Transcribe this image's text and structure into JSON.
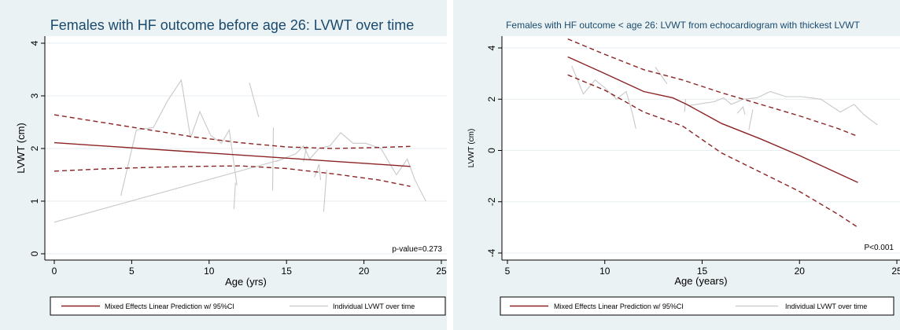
{
  "chart_data": [
    {
      "type": "line",
      "title": "Females with HF outcome before age 26: LVWT over time",
      "xlabel": "Age (yrs)",
      "ylabel": "LVWT (cm)",
      "xlim": [
        -0.5,
        25.5
      ],
      "ylim": [
        -0.1,
        4.2
      ],
      "xticks": [
        0,
        5,
        10,
        15,
        20,
        25
      ],
      "yticks": [
        0,
        1,
        2,
        3,
        4
      ],
      "grid": "horizontal",
      "legend_position": "bottom",
      "annotation": "p-value=0.273",
      "legend": [
        "Mixed Effects Linear Prediction w/ 95%CI",
        "Individual LVWT over time"
      ],
      "colors": {
        "prediction": "#8b2323",
        "individual": "#c8c8c8"
      },
      "series": [
        {
          "role": "prediction",
          "style": "solid",
          "x": [
            0,
            23
          ],
          "y": [
            2.11,
            1.66
          ]
        },
        {
          "role": "ci-upper",
          "style": "dashed",
          "x": [
            0,
            3,
            6,
            9,
            12,
            15,
            18,
            21,
            23
          ],
          "y": [
            2.64,
            2.5,
            2.36,
            2.22,
            2.11,
            2.03,
            2.0,
            2.02,
            2.04
          ]
        },
        {
          "role": "ci-lower",
          "style": "dashed",
          "x": [
            0,
            3,
            6,
            9,
            12,
            15,
            18,
            21,
            23
          ],
          "y": [
            1.57,
            1.61,
            1.64,
            1.66,
            1.67,
            1.62,
            1.52,
            1.4,
            1.28
          ]
        },
        {
          "role": "individual",
          "x": [
            0,
            14.8
          ],
          "y": [
            0.6,
            1.8
          ]
        },
        {
          "role": "individual",
          "x": [
            4.3,
            5.3,
            6.4,
            7.3,
            8.2,
            8.8,
            9.4,
            10.1,
            10.8,
            11.3,
            11.8
          ],
          "y": [
            1.1,
            2.35,
            2.4,
            2.9,
            3.3,
            2.2,
            2.7,
            2.25,
            2.1,
            2.35,
            1.3
          ]
        },
        {
          "role": "individual",
          "x": [
            11.6,
            11.7
          ],
          "y": [
            0.85,
            1.35
          ]
        },
        {
          "role": "individual",
          "x": [
            12.6,
            13.2
          ],
          "y": [
            3.25,
            2.6
          ]
        },
        {
          "role": "individual",
          "x": [
            14.1,
            14.15
          ],
          "y": [
            1.2,
            2.4
          ]
        },
        {
          "role": "individual",
          "x": [
            14.3,
            15.6,
            16.1,
            16.5,
            17.1,
            17.8,
            18.5,
            19.3,
            20.1,
            21.1,
            22.1,
            22.8,
            23.3,
            24.0
          ],
          "y": [
            1.75,
            1.9,
            2.05,
            1.8,
            2.0,
            2.05,
            2.3,
            2.1,
            2.1,
            2.0,
            1.5,
            1.8,
            1.4,
            1.0
          ]
        },
        {
          "role": "individual",
          "x": [
            16.1,
            16.3
          ],
          "y": [
            1.75,
            2.05
          ]
        },
        {
          "role": "individual",
          "x": [
            16.8,
            17.1,
            17.2
          ],
          "y": [
            1.45,
            1.7,
            1.4
          ]
        },
        {
          "role": "individual",
          "x": [
            17.4,
            17.6
          ],
          "y": [
            0.8,
            1.6
          ]
        }
      ]
    },
    {
      "type": "line",
      "title": "Females with HF outcome < age 26: LVWT from echocardiogram with thickest LVWT",
      "xlabel": "Age (years)",
      "ylabel": "LVWT (cm)",
      "xlim": [
        4.5,
        25.5
      ],
      "ylim": [
        -4.4,
        4.4
      ],
      "xticks": [
        5,
        10,
        15,
        20,
        25
      ],
      "yticks": [
        -4,
        -2,
        0,
        2,
        4
      ],
      "grid": "horizontal",
      "legend_position": "bottom",
      "annotation": "P<0.001",
      "legend": [
        "Mixed Effects Linear Prediction w/ 95%CI",
        "Individual LVWT over time"
      ],
      "colors": {
        "prediction": "#8b2323",
        "individual": "#c8c8c8"
      },
      "series": [
        {
          "role": "prediction",
          "style": "solid",
          "x": [
            8.1,
            10,
            12,
            13.5,
            14.2,
            16,
            18,
            20,
            22,
            23
          ],
          "y": [
            3.65,
            3.0,
            2.3,
            2.05,
            1.8,
            1.05,
            0.45,
            -0.2,
            -0.9,
            -1.25
          ]
        },
        {
          "role": "ci-upper",
          "style": "dashed",
          "x": [
            8.1,
            10,
            12,
            14,
            16,
            18,
            20,
            22,
            23
          ],
          "y": [
            4.35,
            3.75,
            3.15,
            2.75,
            2.25,
            1.8,
            1.35,
            0.85,
            0.55
          ]
        },
        {
          "role": "ci-lower",
          "style": "dashed",
          "x": [
            8.1,
            10,
            12,
            14,
            16,
            18,
            20,
            22,
            23
          ],
          "y": [
            2.95,
            2.35,
            1.5,
            0.95,
            -0.1,
            -0.85,
            -1.6,
            -2.5,
            -3.0
          ]
        },
        {
          "role": "individual",
          "x": [
            8.3,
            8.9,
            9.5,
            10.0,
            10.6,
            11.1,
            11.4,
            11.6
          ],
          "y": [
            3.3,
            2.2,
            2.75,
            2.45,
            2.0,
            2.3,
            1.5,
            0.85
          ]
        },
        {
          "role": "individual",
          "x": [
            12.6,
            13.2
          ],
          "y": [
            3.25,
            2.6
          ]
        },
        {
          "role": "individual",
          "x": [
            14.1,
            14.15
          ],
          "y": [
            1.5,
            2.0
          ]
        },
        {
          "role": "individual",
          "x": [
            14.3,
            15.6,
            16.1,
            16.5,
            17.1,
            17.8,
            18.5,
            19.3,
            20.1,
            21.1,
            22.1,
            22.8,
            23.3,
            24.0
          ],
          "y": [
            1.75,
            1.9,
            2.05,
            1.8,
            2.0,
            2.05,
            2.3,
            2.1,
            2.1,
            2.0,
            1.5,
            1.8,
            1.4,
            1.0
          ]
        },
        {
          "role": "individual",
          "x": [
            16.8,
            17.1,
            17.2
          ],
          "y": [
            1.45,
            1.7,
            1.4
          ]
        },
        {
          "role": "individual",
          "x": [
            17.4,
            17.6
          ],
          "y": [
            0.8,
            1.6
          ]
        }
      ]
    }
  ]
}
